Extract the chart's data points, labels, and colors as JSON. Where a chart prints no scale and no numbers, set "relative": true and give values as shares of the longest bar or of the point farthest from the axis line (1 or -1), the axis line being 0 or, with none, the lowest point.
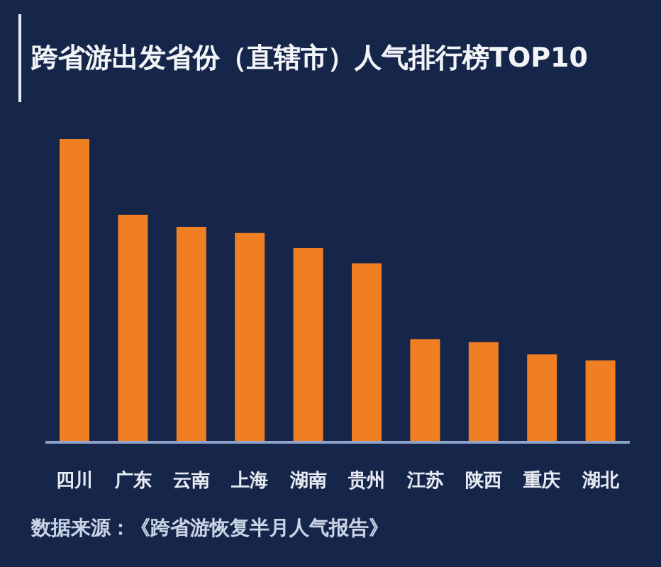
{
  "chart_data": {
    "type": "bar",
    "title": "跨省游出发省份（直辖市）人气排行榜TOP10",
    "categories": [
      "四川",
      "广东",
      "云南",
      "上海",
      "湖南",
      "贵州",
      "江苏",
      "陕西",
      "重庆",
      "湖北"
    ],
    "values": [
      1,
      0.75,
      0.71,
      0.69,
      0.64,
      0.59,
      0.34,
      0.33,
      0.29,
      0.27
    ],
    "color": "#f07f24",
    "relative": true,
    "annotations": [
      "数据来源：《跨省游恢复半月人气报告》"
    ]
  }
}
